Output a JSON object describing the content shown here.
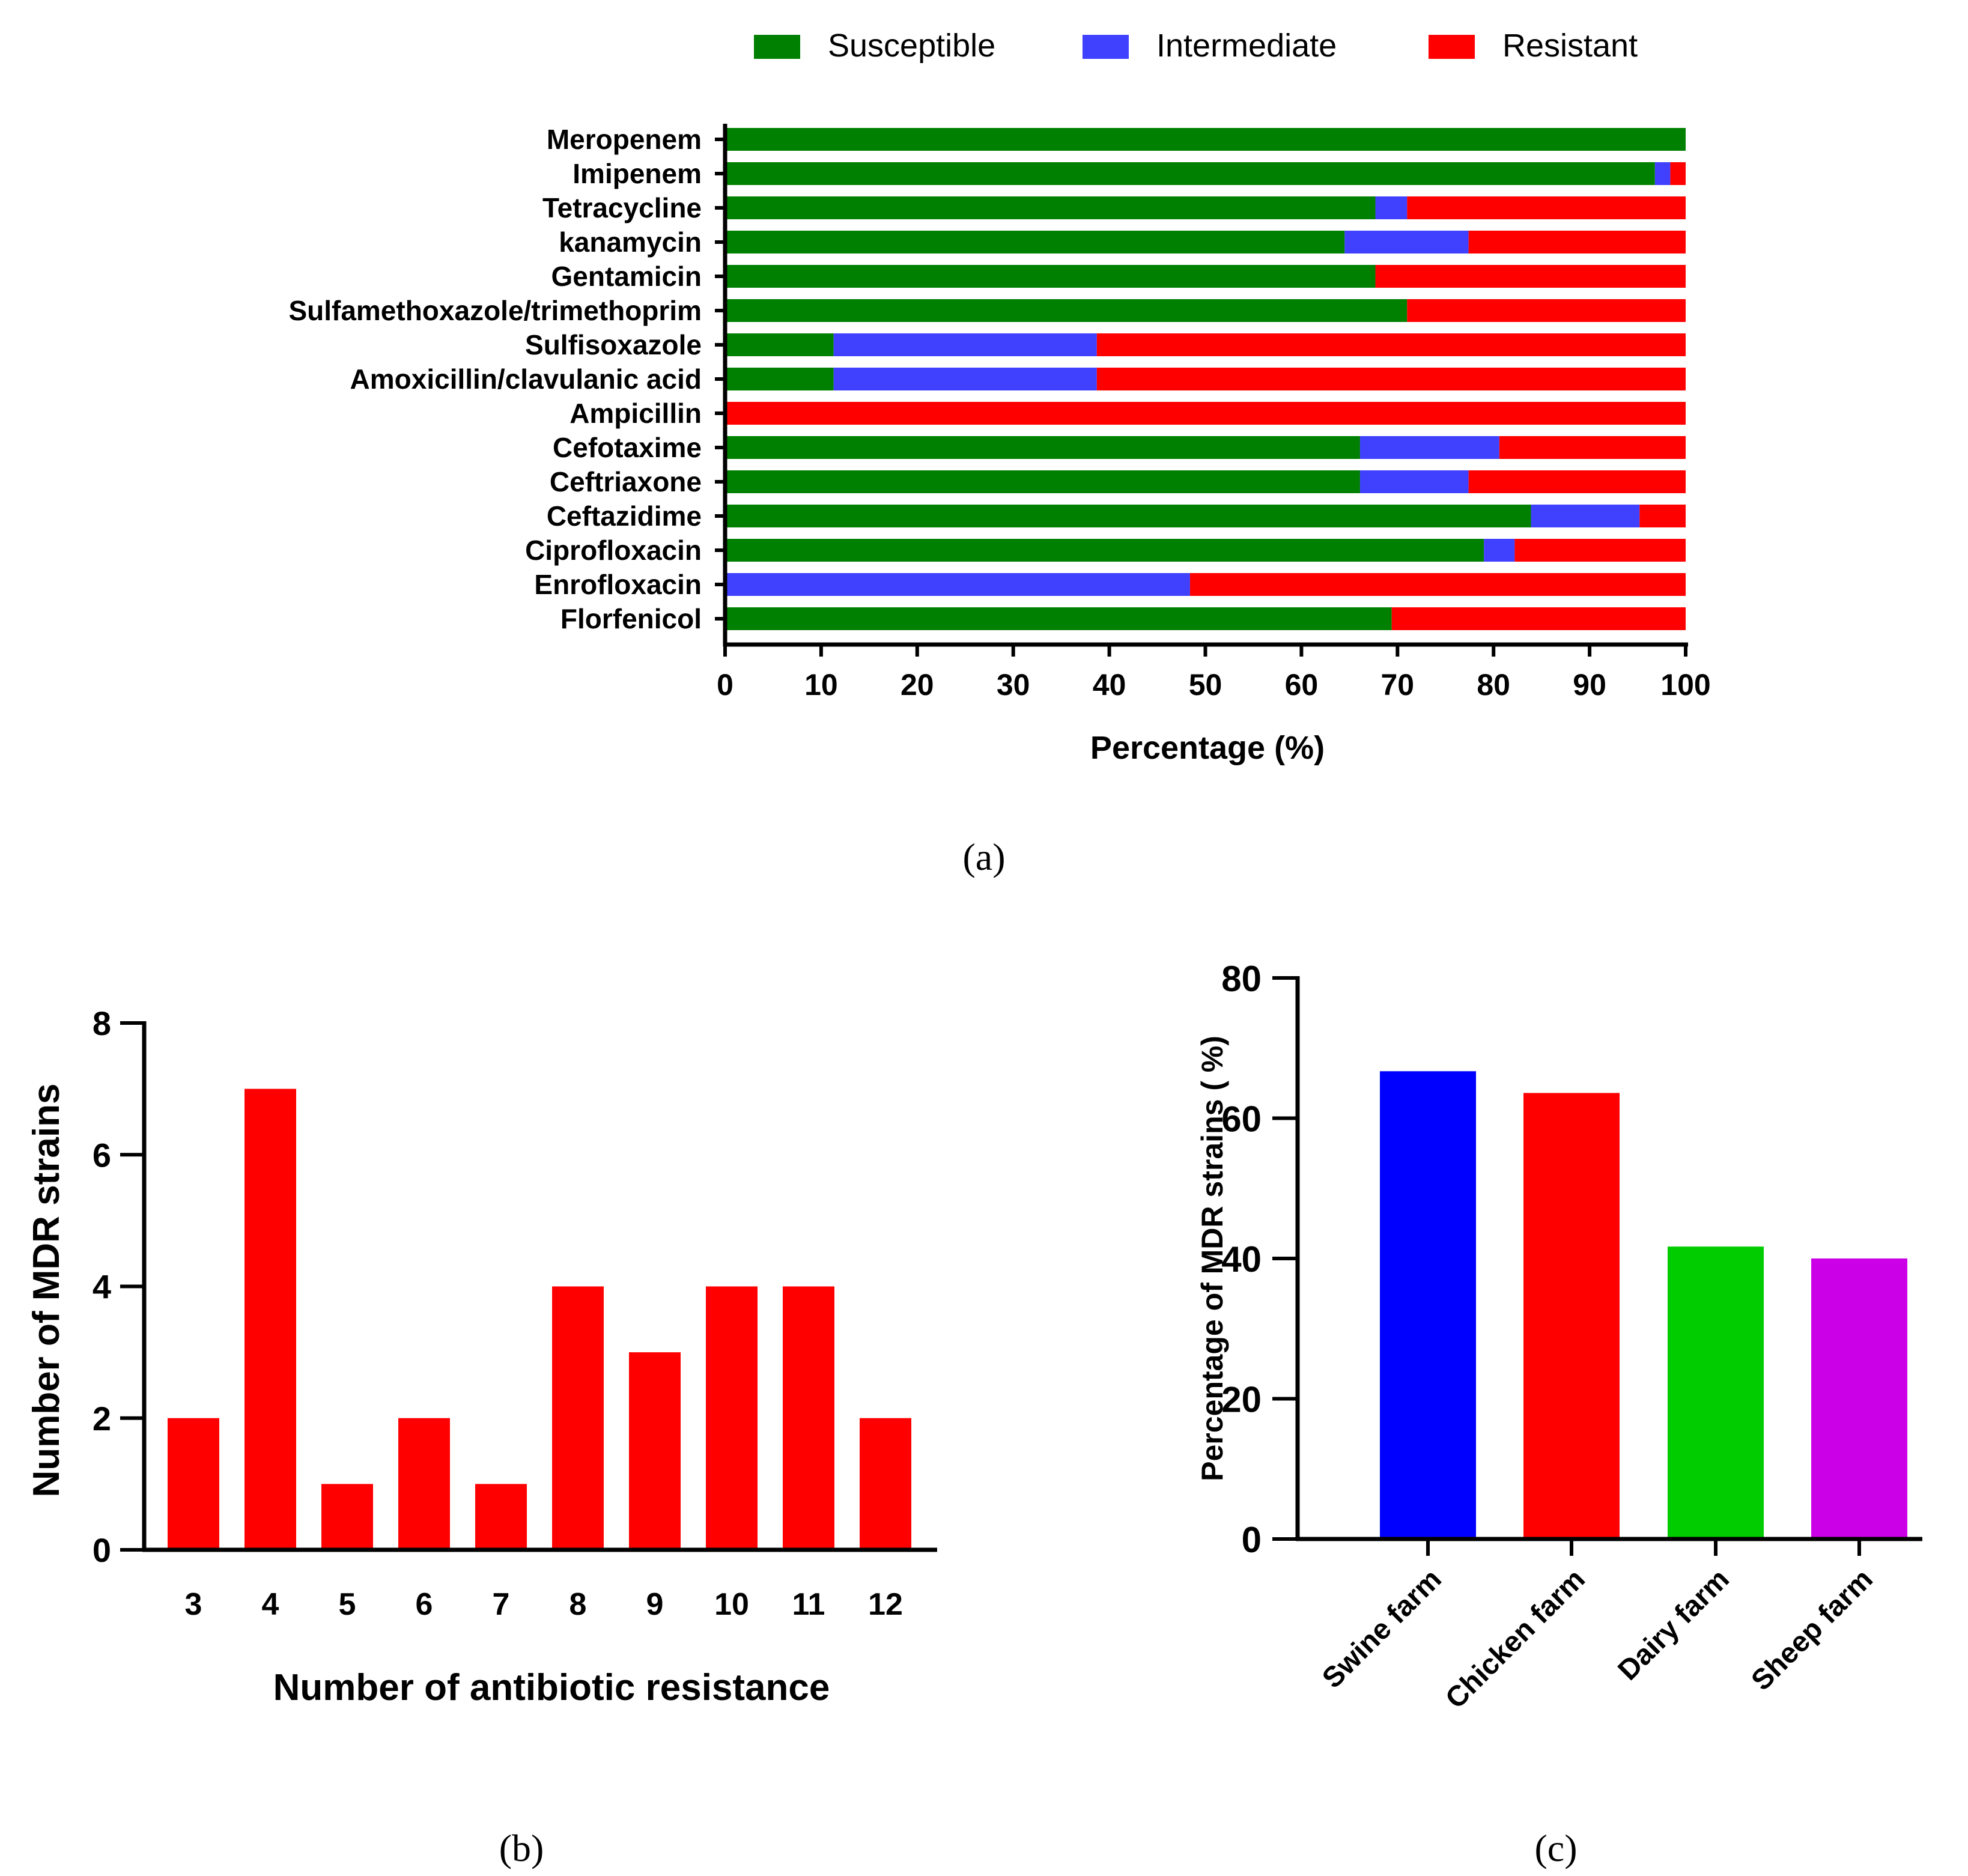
{
  "chart_data": [
    {
      "panel": "(a)",
      "type": "bar",
      "orientation": "horizontal",
      "stacked": true,
      "xlabel": "Percentage (%)",
      "ylabel": "",
      "xlim": [
        0,
        100
      ],
      "xticks": [
        0,
        10,
        20,
        30,
        40,
        50,
        60,
        70,
        80,
        90,
        100
      ],
      "legend_position": "top",
      "categories": [
        "Meropenem",
        "Imipenem",
        "Tetracycline",
        "kanamycin",
        "Gentamicin",
        "Sulfamethoxazole/trimethoprim",
        "Sulfisoxazole",
        "Amoxicillin/clavulanic acid",
        "Ampicillin",
        "Cefotaxime",
        "Ceftriaxone",
        "Ceftazidime",
        "Ciprofloxacin",
        "Enrofloxacin",
        "Florfenicol"
      ],
      "series": [
        {
          "name": "Susceptible",
          "color": "#008000",
          "values": [
            100,
            96.8,
            67.7,
            64.5,
            67.7,
            71.0,
            11.3,
            11.3,
            0,
            66.1,
            66.1,
            83.9,
            79.0,
            0,
            69.4
          ]
        },
        {
          "name": "Intermediate",
          "color": "#4040ff",
          "values": [
            0,
            1.6,
            3.3,
            12.9,
            0,
            0,
            27.4,
            27.4,
            0,
            14.5,
            11.3,
            11.3,
            3.2,
            48.4,
            0
          ]
        },
        {
          "name": "Resistant",
          "color": "#ff0000",
          "values": [
            0,
            1.6,
            29.0,
            22.6,
            32.3,
            29.0,
            61.3,
            61.3,
            100,
            19.4,
            22.6,
            4.8,
            17.8,
            51.6,
            30.6
          ]
        }
      ]
    },
    {
      "panel": "(b)",
      "type": "bar",
      "xlabel": "Number of antibiotic resistance",
      "ylabel": "Number of MDR strains",
      "ylim": [
        0,
        8
      ],
      "yticks": [
        0,
        2,
        4,
        6,
        8
      ],
      "bar_color": "#ff0000",
      "categories": [
        "3",
        "4",
        "5",
        "6",
        "7",
        "8",
        "9",
        "10",
        "11",
        "12"
      ],
      "values": [
        2,
        7,
        1,
        2,
        1,
        4,
        3,
        4,
        4,
        2
      ]
    },
    {
      "panel": "(c)",
      "type": "bar",
      "xlabel": "",
      "ylabel": "Percentage of MDR strains ( %)",
      "ylim": [
        0,
        80
      ],
      "yticks": [
        0,
        20,
        40,
        60,
        80
      ],
      "categories": [
        "Swine farm",
        "Chicken farm",
        "Dairy farm",
        "Sheep farm"
      ],
      "values": [
        66.7,
        63.6,
        41.7,
        40.0
      ],
      "colors": [
        "#0000ff",
        "#ff0000",
        "#00cc00",
        "#cc00e6"
      ]
    }
  ]
}
